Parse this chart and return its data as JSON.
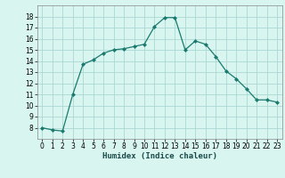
{
  "x": [
    0,
    1,
    2,
    3,
    4,
    5,
    6,
    7,
    8,
    9,
    10,
    11,
    12,
    13,
    14,
    15,
    16,
    17,
    18,
    19,
    20,
    21,
    22,
    23
  ],
  "y": [
    8.0,
    7.8,
    7.7,
    11.0,
    13.7,
    14.1,
    14.7,
    15.0,
    15.1,
    15.3,
    15.5,
    17.1,
    17.9,
    17.9,
    15.0,
    15.8,
    15.5,
    14.4,
    13.1,
    12.4,
    11.5,
    10.5,
    10.5,
    10.3
  ],
  "line_color": "#1a7a6e",
  "marker": "D",
  "marker_size": 2.0,
  "bg_color": "#d8f5f0",
  "grid_color": "#aad8d3",
  "xlabel": "Humidex (Indice chaleur)",
  "ylim": [
    7,
    19
  ],
  "xlim": [
    -0.5,
    23.5
  ],
  "yticks": [
    8,
    9,
    10,
    11,
    12,
    13,
    14,
    15,
    16,
    17,
    18
  ],
  "xticks": [
    0,
    1,
    2,
    3,
    4,
    5,
    6,
    7,
    8,
    9,
    10,
    11,
    12,
    13,
    14,
    15,
    16,
    17,
    18,
    19,
    20,
    21,
    22,
    23
  ],
  "tick_fontsize": 5.5,
  "xlabel_fontsize": 6.5,
  "xlabel_color": "#1a4a4a"
}
